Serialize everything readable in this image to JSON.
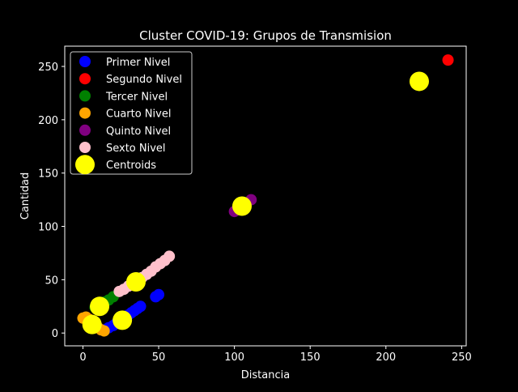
{
  "chart_data": {
    "type": "scatter",
    "title": "Cluster COVID-19: Grupos de Transmision",
    "xlabel": "Distancia",
    "ylabel": "Cantidad",
    "xlim": [
      -12,
      253
    ],
    "ylim": [
      -12,
      269
    ],
    "xticks": [
      0,
      50,
      100,
      150,
      200,
      250
    ],
    "yticks": [
      0,
      50,
      100,
      150,
      200,
      250
    ],
    "grid": false,
    "legend_position": "top-left",
    "series": [
      {
        "name": "Primer Nivel",
        "color": "#0000ff",
        "points": [
          [
            14,
            3
          ],
          [
            17,
            5
          ],
          [
            20,
            7
          ],
          [
            22,
            9
          ],
          [
            24,
            11
          ],
          [
            27,
            14
          ],
          [
            30,
            17
          ],
          [
            32,
            19
          ],
          [
            34,
            21
          ],
          [
            36,
            23
          ],
          [
            38,
            25
          ],
          [
            48,
            34
          ],
          [
            50,
            36
          ]
        ]
      },
      {
        "name": "Segundo Nivel",
        "color": "#ff0000",
        "points": [
          [
            241,
            256
          ]
        ]
      },
      {
        "name": "Tercer Nivel",
        "color": "#008000",
        "points": [
          [
            8,
            24
          ],
          [
            11,
            27
          ],
          [
            14,
            29
          ],
          [
            17,
            31
          ],
          [
            20,
            34
          ]
        ]
      },
      {
        "name": "Cuarto Nivel",
        "color": "#ffa500",
        "points": [
          [
            0,
            14
          ],
          [
            2,
            15
          ],
          [
            4,
            13
          ],
          [
            6,
            11
          ],
          [
            8,
            8
          ],
          [
            10,
            5
          ],
          [
            12,
            3
          ],
          [
            14,
            2
          ]
        ]
      },
      {
        "name": "Quinto Nivel",
        "color": "#800080",
        "points": [
          [
            100,
            114
          ],
          [
            104,
            117
          ],
          [
            107,
            121
          ],
          [
            111,
            125
          ]
        ]
      },
      {
        "name": "Sexto Nivel",
        "color": "#ffc0cb",
        "points": [
          [
            24,
            39
          ],
          [
            27,
            41
          ],
          [
            30,
            44
          ],
          [
            33,
            46
          ],
          [
            36,
            49
          ],
          [
            39,
            52
          ],
          [
            42,
            55
          ],
          [
            45,
            58
          ],
          [
            48,
            62
          ],
          [
            51,
            65
          ],
          [
            54,
            68
          ],
          [
            57,
            72
          ]
        ]
      }
    ],
    "centroids": {
      "name": "Centroids",
      "color": "#ffff00",
      "points": [
        [
          222,
          236
        ],
        [
          105,
          119
        ],
        [
          35,
          48
        ],
        [
          11,
          25
        ],
        [
          26,
          12
        ],
        [
          6,
          8
        ]
      ]
    }
  }
}
